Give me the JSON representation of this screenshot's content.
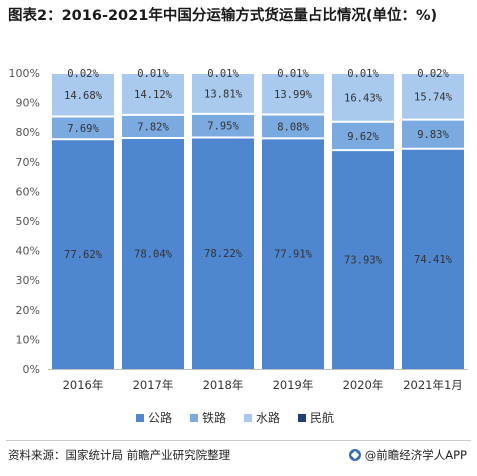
{
  "header": {
    "title": "图表2：2016-2021年中国分运输方式货运量占比情况(单位：%)"
  },
  "footer": {
    "source": "资料来源：国家统计局 前瞻产业研究院整理",
    "brand": "@前瞻经济学人APP"
  },
  "colors": {
    "公路": "#4e86cf",
    "铁路": "#7aaae0",
    "水路": "#a9c9ee",
    "民航": "#1e3f7a"
  },
  "chart_data": {
    "type": "bar",
    "stacked": true,
    "title": "图表2：2016-2021年中国分运输方式货运量占比情况(单位：%)",
    "categories": [
      "2016年",
      "2017年",
      "2018年",
      "2019年",
      "2020年",
      "2021年1月"
    ],
    "series": [
      {
        "name": "公路",
        "values": [
          77.62,
          78.04,
          78.22,
          77.91,
          73.93,
          74.41
        ],
        "labels": [
          "77.62%",
          "78.04%",
          "78.22%",
          "77.91%",
          "73.93%",
          "74.41%"
        ]
      },
      {
        "name": "铁路",
        "values": [
          7.69,
          7.82,
          7.95,
          8.08,
          9.62,
          9.83
        ],
        "labels": [
          "7.69%",
          "7.82%",
          "7.95%",
          "8.08%",
          "9.62%",
          "9.83%"
        ]
      },
      {
        "name": "水路",
        "values": [
          14.68,
          14.12,
          13.81,
          13.99,
          16.43,
          15.74
        ],
        "labels": [
          "14.68%",
          "14.12%",
          "13.81%",
          "13.99%",
          "16.43%",
          "15.74%"
        ]
      },
      {
        "name": "民航",
        "values": [
          0.02,
          0.01,
          0.01,
          0.01,
          0.01,
          0.02
        ],
        "labels": [
          "0.02%",
          "0.01%",
          "0.01%",
          "0.01%",
          "0.01%",
          "0.02%"
        ]
      }
    ],
    "yticks": [
      "0%",
      "10%",
      "20%",
      "30%",
      "40%",
      "50%",
      "60%",
      "70%",
      "80%",
      "90%",
      "100%"
    ],
    "ylim": [
      0,
      100
    ],
    "legend": "bottom"
  }
}
